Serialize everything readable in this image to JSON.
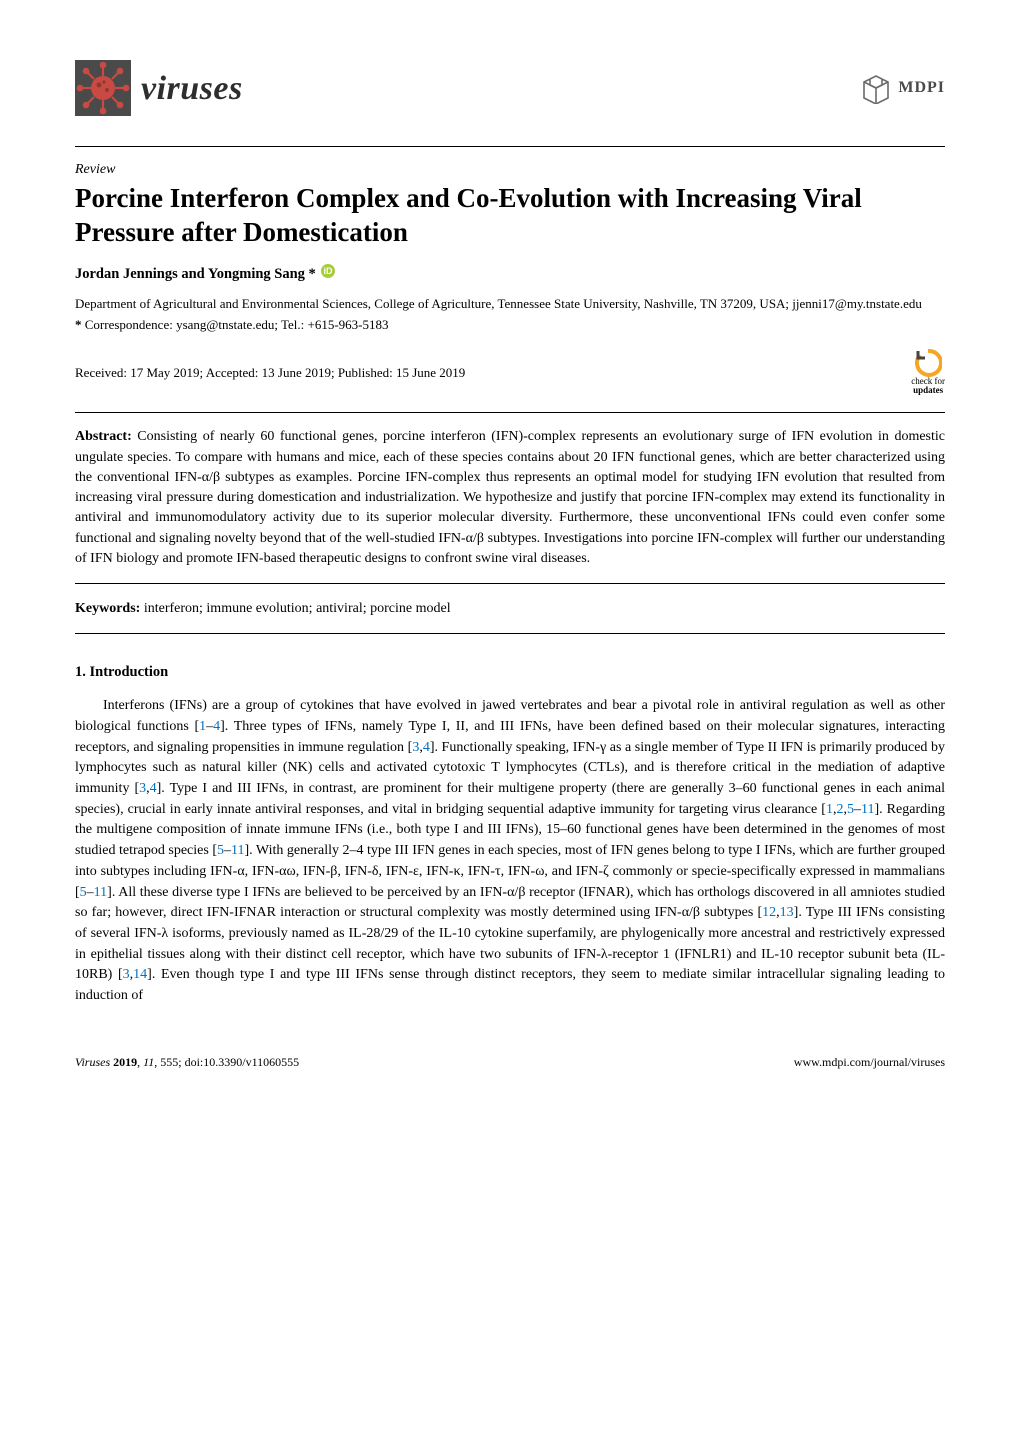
{
  "journal": {
    "name": "viruses",
    "logo_bg": "#4a4a4a",
    "logo_accent": "#d9534f"
  },
  "publisher": {
    "name": "MDPI",
    "logo_stroke": "#6b6b6b"
  },
  "article": {
    "type": "Review",
    "title": "Porcine Interferon Complex and Co-Evolution with Increasing Viral Pressure after Domestication",
    "authors": "Jordan Jennings and Yongming Sang *",
    "affiliation": "Department of Agricultural and Environmental Sciences, College of Agriculture, Tennessee State University, Nashville, TN 37209, USA; jjenni17@my.tnstate.edu",
    "correspondence_label": "*",
    "correspondence": "Correspondence: ysang@tnstate.edu; Tel.: +615-963-5183",
    "dates": "Received: 17 May 2019; Accepted: 13 June 2019; Published: 15 June 2019",
    "check_updates_top": "check for",
    "check_updates_bottom": "updates",
    "check_updates_color": "#f5a623"
  },
  "abstract": {
    "label": "Abstract:",
    "text": " Consisting of nearly 60 functional genes, porcine interferon (IFN)-complex represents an evolutionary surge of IFN evolution in domestic ungulate species. To compare with humans and mice, each of these species contains about 20 IFN functional genes, which are better characterized using the conventional IFN-α/β subtypes as examples. Porcine IFN-complex thus represents an optimal model for studying IFN evolution that resulted from increasing viral pressure during domestication and industrialization. We hypothesize and justify that porcine IFN-complex may extend its functionality in antiviral and immunomodulatory activity due to its superior molecular diversity. Furthermore, these unconventional IFNs could even confer some functional and signaling novelty beyond that of the well-studied IFN-α/β subtypes. Investigations into porcine IFN-complex will further our understanding of IFN biology and promote IFN-based therapeutic designs to confront swine viral diseases."
  },
  "keywords": {
    "label": "Keywords:",
    "text": " interferon; immune evolution; antiviral; porcine model"
  },
  "section1": {
    "heading": "1. Introduction",
    "para_html": "Interferons (IFNs) are a group of cytokines that have evolved in jawed vertebrates and bear a pivotal role in antiviral regulation as well as other biological functions [<a class='ref' href='#'>1</a>–<a class='ref' href='#'>4</a>]. Three types of IFNs, namely Type I, II, and III IFNs, have been defined based on their molecular signatures, interacting receptors, and signaling propensities in immune regulation [<a class='ref' href='#'>3</a>,<a class='ref' href='#'>4</a>]. Functionally speaking, IFN-γ as a single member of Type II IFN is primarily produced by lymphocytes such as natural killer (NK) cells and activated cytotoxic T lymphocytes (CTLs), and is therefore critical in the mediation of adaptive immunity [<a class='ref' href='#'>3</a>,<a class='ref' href='#'>4</a>]. Type I and III IFNs, in contrast, are prominent for their multigene property (there are generally 3–60 functional genes in each animal species), crucial in early innate antiviral responses, and vital in bridging sequential adaptive immunity for targeting virus clearance [<a class='ref' href='#'>1</a>,<a class='ref' href='#'>2</a>,<a class='ref' href='#'>5</a>–<a class='ref' href='#'>11</a>]. Regarding the multigene composition of innate immune IFNs (i.e., both type I and III IFNs), 15–60 functional genes have been determined in the genomes of most studied tetrapod species [<a class='ref' href='#'>5</a>–<a class='ref' href='#'>11</a>]. With generally 2–4 type III IFN genes in each species, most of IFN genes belong to type I IFNs, which are further grouped into subtypes including IFN-α, IFN-αω, IFN-β, IFN-δ, IFN-ε, IFN-κ, IFN-τ, IFN-ω, and IFN-ζ commonly or specie-specifically expressed in mammalians [<a class='ref' href='#'>5</a>–<a class='ref' href='#'>11</a>]. All these diverse type I IFNs are believed to be perceived by an IFN-α/β receptor (IFNAR), which has orthologs discovered in all amniotes studied so far; however, direct IFN-IFNAR interaction or structural complexity was mostly determined using IFN-α/β subtypes [<a class='ref' href='#'>12</a>,<a class='ref' href='#'>13</a>]. Type III IFNs consisting of several IFN-λ isoforms, previously named as IL-28/29 of the IL-10 cytokine superfamily, are phylogenically more ancestral and restrictively expressed in epithelial tissues along with their distinct cell receptor, which have two subunits of IFN-λ-receptor 1 (IFNLR1) and IL-10 receptor subunit beta (IL-10RB) [<a class='ref' href='#'>3</a>,<a class='ref' href='#'>14</a>]. Even though type I and type III IFNs sense through distinct receptors, they seem to mediate similar intracellular signaling leading to induction of"
  },
  "footer": {
    "left_journal": "Viruses",
    "left_year": "2019",
    "left_vol": "11",
    "left_page": "555",
    "left_doi": "doi:10.3390/v11060555",
    "right": "www.mdpi.com/journal/viruses"
  },
  "colors": {
    "ref_link": "#0070c0",
    "orcid_green": "#a6ce39",
    "text": "#000000"
  }
}
